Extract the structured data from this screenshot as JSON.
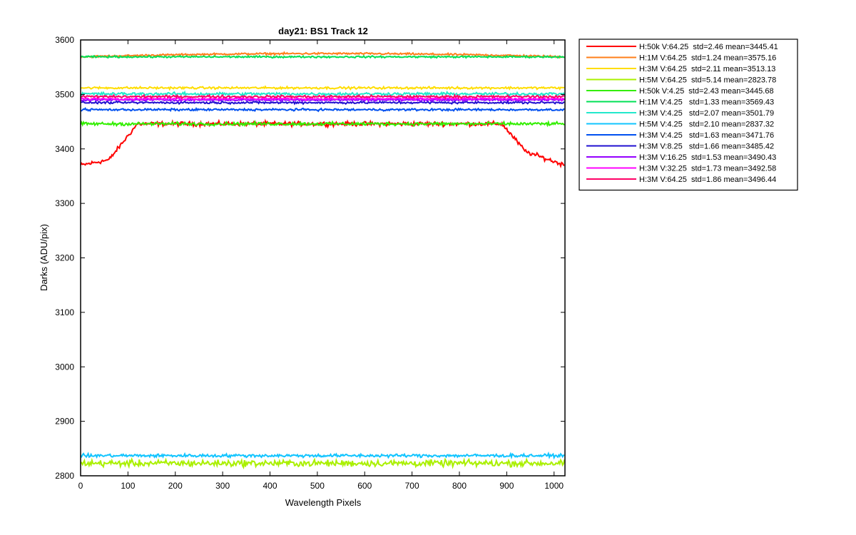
{
  "chart_data": {
    "type": "line",
    "title": "day21: BS1  Track 12",
    "xlabel": "Wavelength Pixels",
    "ylabel": "Darks (ADU/pix)",
    "xlim": [
      0,
      1023
    ],
    "ylim": [
      2800,
      3600
    ],
    "xticks": [
      0,
      100,
      200,
      300,
      400,
      500,
      600,
      700,
      800,
      900,
      1000
    ],
    "yticks": [
      2800,
      2900,
      3000,
      3100,
      3200,
      3300,
      3400,
      3500,
      3600
    ],
    "legend_position": "outside-top-right",
    "series": [
      {
        "name": "H:50k V:64.25  std=2.46 mean=3445.41",
        "color": "#ff0000",
        "shape": "ramp",
        "level": 3446,
        "edge_level": 3370,
        "noise": 3.0
      },
      {
        "name": "H:1M V:64.25  std=1.24 mean=3575.16",
        "color": "#ff7f1a",
        "shape": "arch",
        "level": 3575,
        "edge_level": 3569,
        "noise": 1.3
      },
      {
        "name": "H:3M V:64.25  std=2.11 mean=3513.13",
        "color": "#ffdd00",
        "shape": "flat",
        "level": 3512,
        "noise": 1.5
      },
      {
        "name": "H:5M V:64.25  std=5.14 mean=2823.78",
        "color": "#aaf000",
        "shape": "flat",
        "level": 2823,
        "noise": 4.5
      },
      {
        "name": "H:50k V:4.25  std=2.43 mean=3445.68",
        "color": "#33ee00",
        "shape": "flat",
        "level": 3446,
        "noise": 2.2
      },
      {
        "name": "H:1M V:4.25   std=1.33 mean=3569.43",
        "color": "#00e055",
        "shape": "flat",
        "level": 3569,
        "noise": 1.2
      },
      {
        "name": "H:3M V:4.25   std=2.07 mean=3501.79",
        "color": "#22e8cc",
        "shape": "flat",
        "level": 3501,
        "noise": 2.0
      },
      {
        "name": "H:5M V:4.25   std=2.10 mean=2837.32",
        "color": "#10c4ff",
        "shape": "flat",
        "level": 2837,
        "noise": 2.2
      },
      {
        "name": "H:3M V:4.25   std=1.63 mean=3471.76",
        "color": "#0050f0",
        "shape": "flat",
        "level": 3472,
        "noise": 1.5
      },
      {
        "name": "H:3M V:8.25   std=1.66 mean=3485.42",
        "color": "#2010d0",
        "shape": "flat",
        "level": 3485,
        "noise": 1.5
      },
      {
        "name": "H:3M V:16.25  std=1.53 mean=3490.43",
        "color": "#9400ff",
        "shape": "flat",
        "level": 3490,
        "noise": 1.5
      },
      {
        "name": "H:3M V:32.25  std=1.73 mean=3492.58",
        "color": "#ff00ff",
        "shape": "flat",
        "level": 3492,
        "noise": 1.6
      },
      {
        "name": "H:3M V:64.25  std=1.86 mean=3496.44",
        "color": "#ff0066",
        "shape": "flat",
        "level": 3496,
        "noise": 1.7
      }
    ]
  }
}
